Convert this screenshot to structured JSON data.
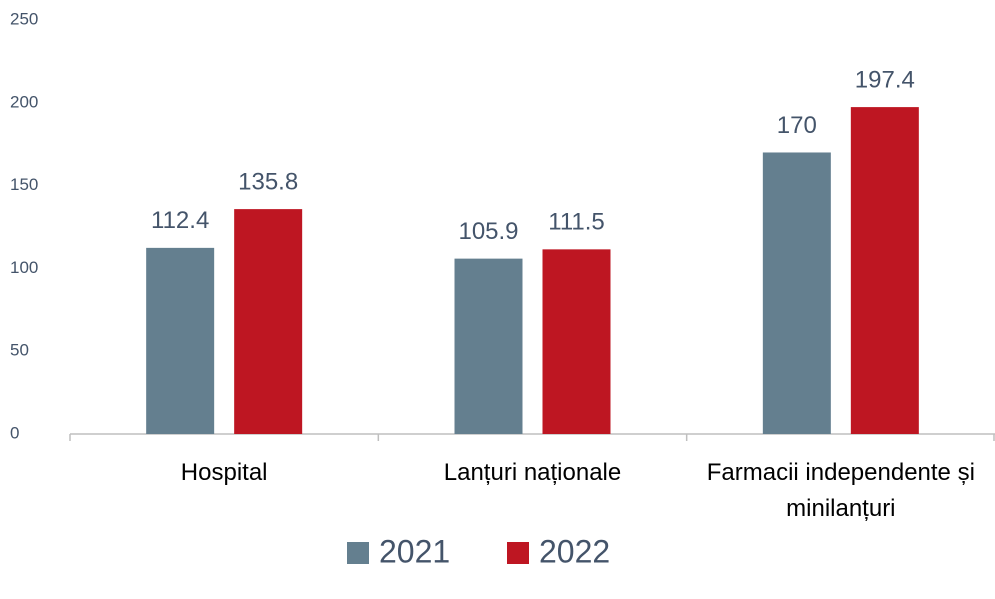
{
  "chart_data": {
    "type": "bar",
    "categories": [
      "Hospital",
      "Lanțuri naționale",
      "Farmacii independente și minilanțuri"
    ],
    "series": [
      {
        "name": "2021",
        "color": "#647f8f",
        "values": [
          112.4,
          105.9,
          170
        ]
      },
      {
        "name": "2022",
        "color": "#be1622",
        "values": [
          135.8,
          111.5,
          197.4
        ]
      }
    ],
    "ylim": [
      0,
      250
    ],
    "yticks": [
      0,
      50,
      100,
      150,
      200,
      250
    ],
    "grid": false,
    "legend": "bottom"
  }
}
